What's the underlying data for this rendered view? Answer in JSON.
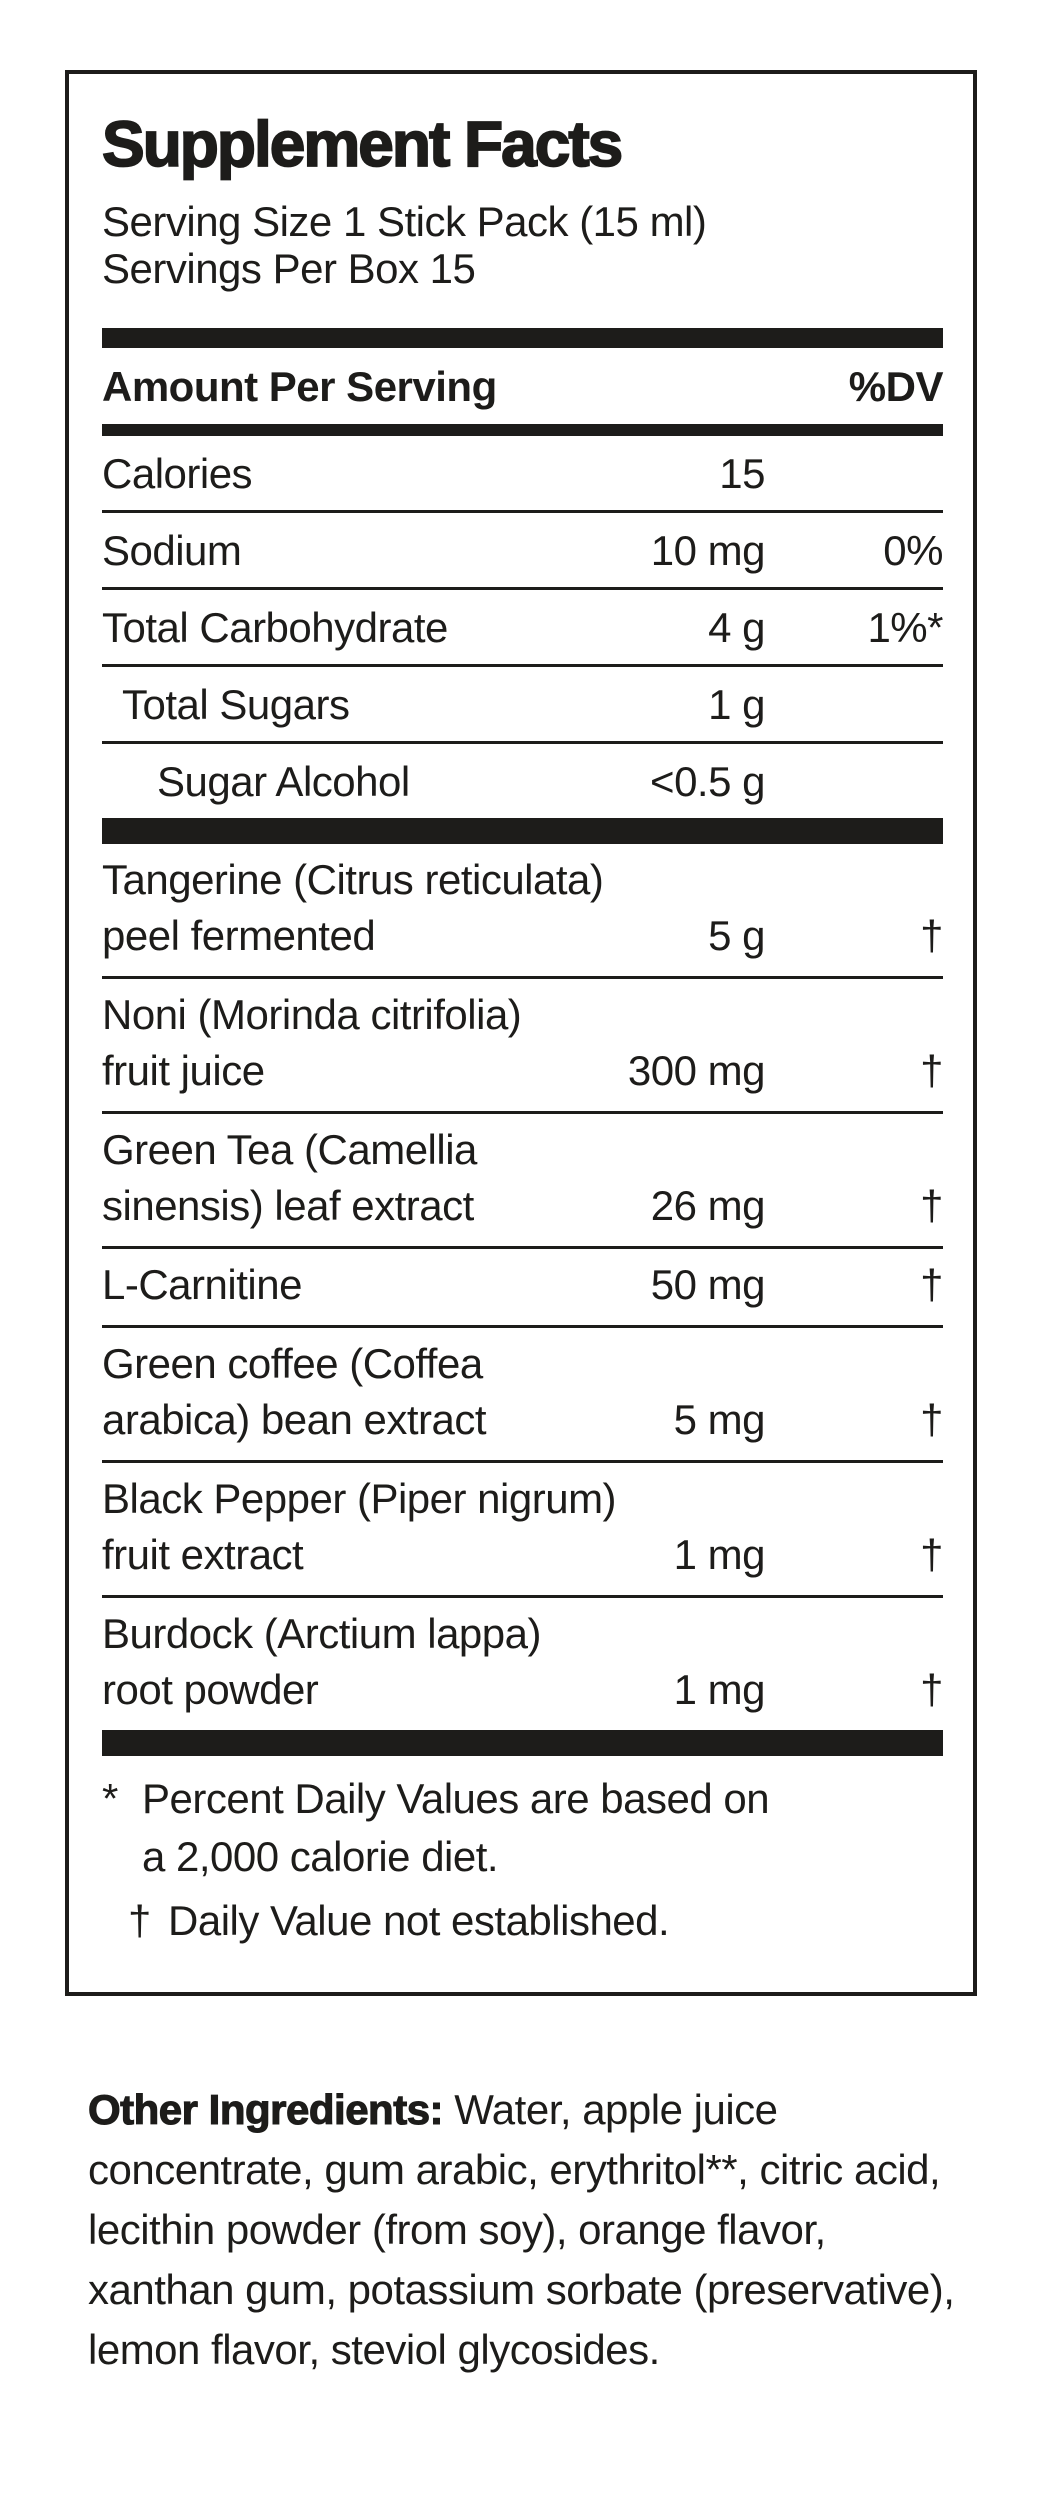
{
  "panel": {
    "title": "Supplement Facts",
    "serving_size_line": "Serving Size 1 Stick Pack (15 ml)",
    "servings_per_box_line": "Servings Per Box 15",
    "header": {
      "amount_label": "Amount Per Serving",
      "dv_label": "%DV"
    },
    "nutrients": [
      {
        "name": "Calories",
        "amount": "15",
        "dv": ""
      },
      {
        "name": "Sodium",
        "amount": "10 mg",
        "dv": "0%"
      },
      {
        "name": "Total Carbohydrate",
        "amount": "4 g",
        "dv": "1%*"
      },
      {
        "name": "Total Sugars",
        "amount": "1 g",
        "dv": ""
      },
      {
        "name": "Sugar Alcohol",
        "amount": "<0.5 g",
        "dv": ""
      }
    ],
    "botanicals": [
      {
        "line1": "Tangerine (Citrus reticulata)",
        "line2": "peel fermented",
        "amount": "5 g",
        "dv": "†"
      },
      {
        "line1": "Noni (Morinda citrifolia)",
        "line2": "fruit juice",
        "amount": "300 mg",
        "dv": "†"
      },
      {
        "line1": "Green Tea (Camellia",
        "line2": "sinensis) leaf extract",
        "amount": "26 mg",
        "dv": "†"
      },
      {
        "line1": "",
        "line2": "L-Carnitine",
        "amount": "50 mg",
        "dv": "†"
      },
      {
        "line1": "Green coffee (Coffea",
        "line2": "arabica) bean extract",
        "amount": "5 mg",
        "dv": "†"
      },
      {
        "line1": "Black Pepper (Piper nigrum)",
        "line2": "fruit extract",
        "amount": "1 mg",
        "dv": "†"
      },
      {
        "line1": "Burdock (Arctium lappa)",
        "line2": "root powder",
        "amount": "1 mg",
        "dv": "†"
      }
    ],
    "footnotes": {
      "dv_marker": "*",
      "dv_line1": "Percent Daily Values are based on",
      "dv_line2": "a 2,000 calorie diet.",
      "ne_marker": "†",
      "ne_text": "Daily Value not established."
    }
  },
  "other_ingredients": {
    "label": "Other Ingredients:",
    "text": "Water, apple juice concentrate, gum arabic, erythritol**, citric acid, lecithin powder (from soy), orange flavor, xanthan gum, potassium sorbate (preservative), lemon flavor, steviol glycosides."
  },
  "colors": {
    "ink": "#1d1c1a",
    "background": "#ffffff"
  }
}
